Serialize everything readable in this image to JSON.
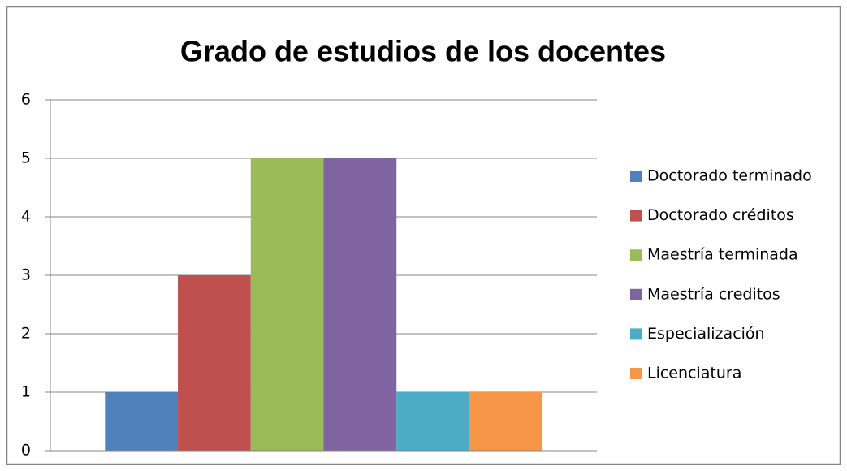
{
  "chart_data": {
    "type": "bar",
    "title": "Grado de estudios de los docentes",
    "categories": [
      null
    ],
    "series": [
      {
        "name": "Doctorado terminado",
        "color": "#4f81bd",
        "values": [
          1
        ]
      },
      {
        "name": "Doctorado créditos",
        "color": "#c0504d",
        "values": [
          3
        ]
      },
      {
        "name": "Maestría terminada",
        "color": "#9bbb59",
        "values": [
          5
        ]
      },
      {
        "name": "Maestría creditos",
        "color": "#8064a2",
        "values": [
          5
        ]
      },
      {
        "name": "Especialización",
        "color": "#4bacc6",
        "values": [
          1
        ]
      },
      {
        "name": "Licenciatura",
        "color": "#f79646",
        "values": [
          1
        ]
      }
    ],
    "ylim": [
      0,
      6
    ],
    "yticks": [
      0,
      1,
      2,
      3,
      4,
      5,
      6
    ],
    "grid": true,
    "legend": "right"
  }
}
